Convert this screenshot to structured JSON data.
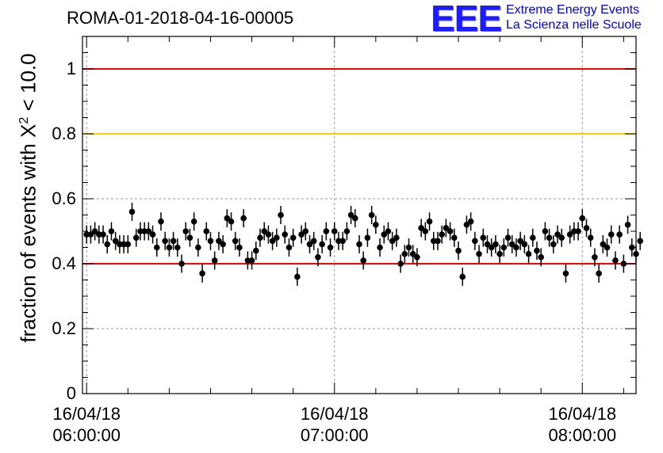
{
  "header": {
    "title": "ROMA-01-2018-04-16-00005",
    "logo_mark": "EEE",
    "logo_line1": "Extreme Energy Events",
    "logo_line2": "La Scienza nelle Scuole"
  },
  "colors": {
    "upper_limit_line": "#ff0000",
    "warning_line": "#ffcc00",
    "lower_limit_line": "#ff0000",
    "markers": "#000000",
    "grid": "#999999"
  },
  "chart_data": {
    "type": "scatter",
    "title": "ROMA-01-2018-04-16-00005",
    "xlabel": "",
    "ylabel_prefix": "fraction of events with ",
    "ylabel_symbol": "X",
    "ylabel_superscript": "2",
    "ylabel_suffix": " < 10.0",
    "ylim": [
      0,
      1.1
    ],
    "y_ticks": [
      {
        "value": 0,
        "label": "0"
      },
      {
        "value": 0.2,
        "label": "0.2"
      },
      {
        "value": 0.4,
        "label": "0.4"
      },
      {
        "value": 0.6,
        "label": "0.6"
      },
      {
        "value": 0.8,
        "label": "0.8"
      },
      {
        "value": 1.0,
        "label": "1"
      }
    ],
    "xlim_minutes": [
      -1,
      133
    ],
    "x_ticks": [
      {
        "value": 0,
        "date": "16/04/18",
        "time": "06:00:00"
      },
      {
        "value": 60,
        "date": "16/04/18",
        "time": "07:00:00"
      },
      {
        "value": 120,
        "date": "16/04/18",
        "time": "08:00:00"
      }
    ],
    "grid": true,
    "reference_lines": [
      {
        "y": 1.0,
        "color": "#ff0000"
      },
      {
        "y": 0.8,
        "color": "#ffcc00"
      },
      {
        "y": 0.4,
        "color": "#ff0000"
      }
    ],
    "error": 0.028,
    "values": [
      0.49,
      0.49,
      0.5,
      0.49,
      0.49,
      0.46,
      0.5,
      0.47,
      0.46,
      0.46,
      0.46,
      0.56,
      0.48,
      0.5,
      0.5,
      0.5,
      0.49,
      0.45,
      0.53,
      0.47,
      0.45,
      0.47,
      0.45,
      0.4,
      0.5,
      0.48,
      0.53,
      0.45,
      0.37,
      0.5,
      0.47,
      0.41,
      0.47,
      0.46,
      0.54,
      0.53,
      0.47,
      0.45,
      0.54,
      0.41,
      0.41,
      0.44,
      0.48,
      0.5,
      0.49,
      0.47,
      0.48,
      0.55,
      0.49,
      0.45,
      0.48,
      0.36,
      0.49,
      0.5,
      0.46,
      0.47,
      0.42,
      0.46,
      0.5,
      0.45,
      0.5,
      0.47,
      0.47,
      0.5,
      0.55,
      0.54,
      0.46,
      0.41,
      0.48,
      0.55,
      0.52,
      0.45,
      0.49,
      0.5,
      0.47,
      0.48,
      0.4,
      0.43,
      0.45,
      0.43,
      0.42,
      0.51,
      0.5,
      0.53,
      0.47,
      0.47,
      0.49,
      0.51,
      0.5,
      0.48,
      0.44,
      0.36,
      0.52,
      0.53,
      0.47,
      0.43,
      0.48,
      0.46,
      0.45,
      0.46,
      0.43,
      0.45,
      0.48,
      0.46,
      0.45,
      0.47,
      0.46,
      0.43,
      0.48,
      0.44,
      0.42,
      0.5,
      0.48,
      0.46,
      0.49,
      0.48,
      0.37,
      0.49,
      0.5,
      0.5,
      0.54,
      0.51,
      0.48,
      0.42,
      0.37,
      0.46,
      0.45,
      0.49,
      0.41,
      0.49,
      0.4,
      0.52,
      0.45,
      0.43,
      0.47
    ]
  }
}
